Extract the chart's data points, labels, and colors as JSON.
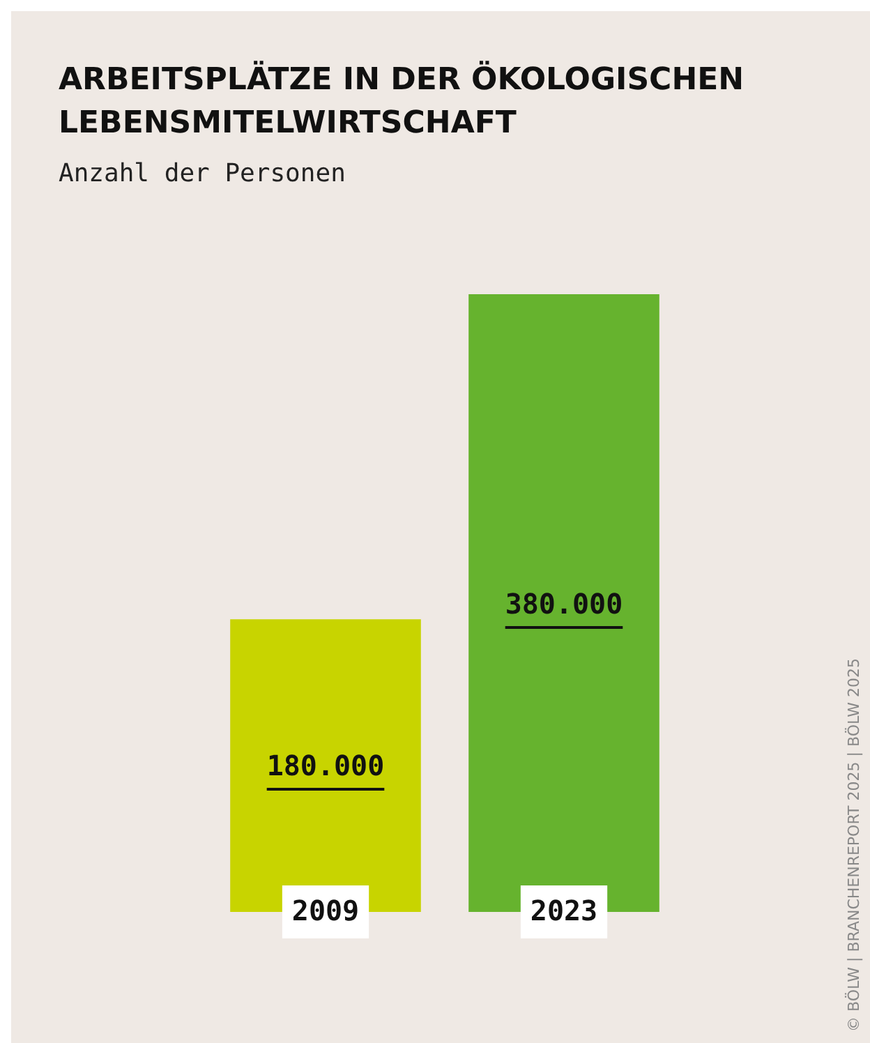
{
  "chart_data": {
    "type": "bar",
    "title": "ARBEITSPLÄTZE IN DER ÖKOLOGISCHEN LEBENSMITELWIRTSCHAFT",
    "subtitle": "Anzahl der Personen",
    "categories": [
      "2009",
      "2023"
    ],
    "values": [
      180000,
      380000
    ],
    "colors": [
      "#c8d400",
      "#66b32e"
    ],
    "value_labels": [
      "180.000",
      "380.000"
    ],
    "annotations": [
      "© BÖLW | BRANCHENREPORT 2025 | BÖLW 2025"
    ],
    "legend": false
  }
}
